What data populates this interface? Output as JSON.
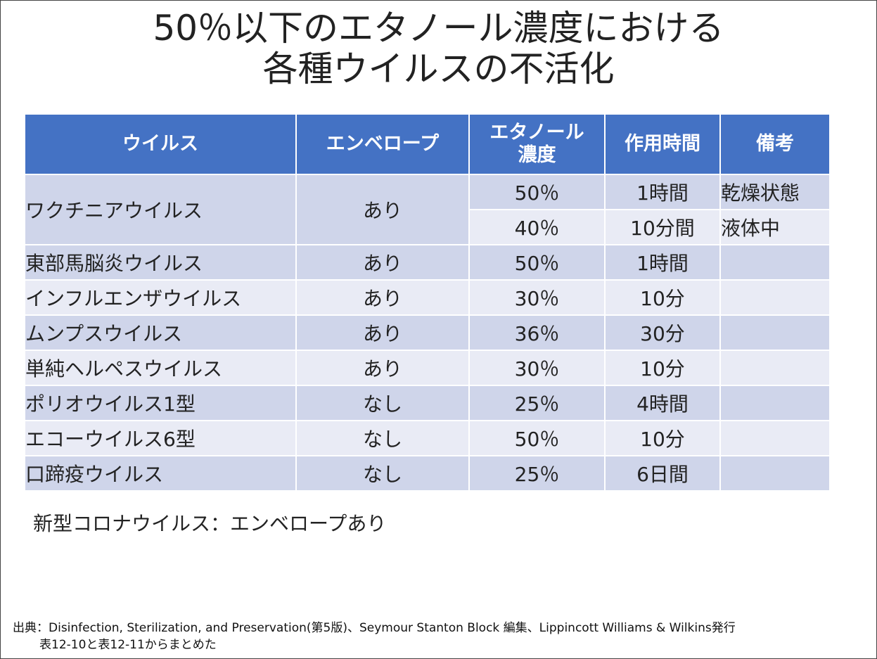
{
  "title": {
    "line1": "50％以下のエタノール濃度における",
    "line2": "各種ウイルスの不活化"
  },
  "table": {
    "headers": {
      "virus": "ウイルス",
      "envelope": "エンベロープ",
      "ethanol_line1": "エタノール",
      "ethanol_line2": "濃度",
      "time": "作用時間",
      "note": "備考"
    },
    "vaccinia": {
      "name": "ワクチニアウイルス",
      "envelope": "あり",
      "sub": [
        {
          "concentration": "50％",
          "time": "1時間",
          "note": "乾燥状態"
        },
        {
          "concentration": "40％",
          "time": "10分間",
          "note": "液体中"
        }
      ]
    },
    "rows": [
      {
        "name": "東部馬脳炎ウイルス",
        "envelope": "あり",
        "concentration": "50％",
        "time": "1時間",
        "note": ""
      },
      {
        "name": "インフルエンザウイルス",
        "envelope": "あり",
        "concentration": "30％",
        "time": "10分",
        "note": ""
      },
      {
        "name": "ムンプスウイルス",
        "envelope": "あり",
        "concentration": "36％",
        "time": "30分",
        "note": ""
      },
      {
        "name": "単純ヘルペスウイルス",
        "envelope": "あり",
        "concentration": "30％",
        "time": "10分",
        "note": ""
      },
      {
        "name": "ポリオウイルス1型",
        "envelope": "なし",
        "concentration": "25％",
        "time": "4時間",
        "note": ""
      },
      {
        "name": "エコーウイルス6型",
        "envelope": "なし",
        "concentration": "50％",
        "time": "10分",
        "note": ""
      },
      {
        "name": "口蹄疫ウイルス",
        "envelope": "なし",
        "concentration": "25％",
        "time": "6日間",
        "note": ""
      }
    ]
  },
  "corona_note": "新型コロナウイルス：エンベロープあり",
  "source": {
    "line1": "出典：Disinfection, Sterilization, and Preservation(第5版)、Seymour Stanton Block 編集、Lippincott Williams & Wilkins発行",
    "line2": "表12-10と表12-11からまとめた"
  }
}
